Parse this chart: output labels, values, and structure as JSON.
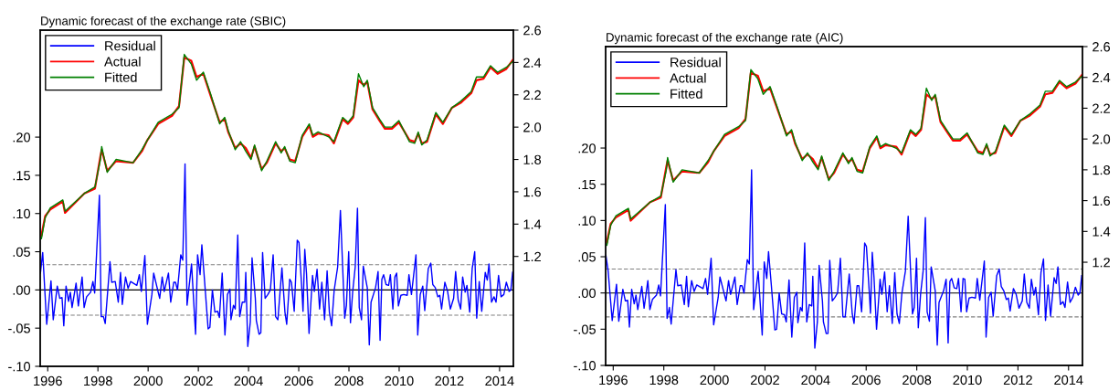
{
  "chart_data": [
    {
      "type": "line",
      "title": "Dynamic forecast of the exchange rate (SBIC)",
      "legend": "top left",
      "grid": false,
      "xlim": [
        1995.7,
        2014.55
      ],
      "xticks": [
        1996,
        1998,
        2000,
        2002,
        2004,
        2006,
        2008,
        2010,
        2012,
        2014
      ],
      "ylim": [
        -0.1,
        0.34
      ],
      "yticks": [
        {
          "value": -0.1,
          "label": "-.10"
        },
        {
          "value": -0.05,
          "label": "-.05"
        },
        {
          "value": 0,
          "label": ".00"
        },
        {
          "value": 0.05,
          "label": ".05"
        },
        {
          "value": 0.1,
          "label": ".10"
        },
        {
          "value": 0.15,
          "label": ".15"
        },
        {
          "value": 0.2,
          "label": ".20"
        }
      ],
      "y2lim": [
        0.52,
        2.6
      ],
      "y2ticks": [
        1.2,
        1.4,
        1.6,
        1.8,
        {
          "value": 2,
          "label": "2.0"
        },
        2.2,
        2.4,
        2.6
      ],
      "ref_lines": [
        {
          "axis": "y",
          "value": 0,
          "color": "#000000",
          "line_style": "solid"
        },
        {
          "axis": "y",
          "value": 0.033,
          "color": "#808080",
          "line_style": "dashed"
        },
        {
          "axis": "y",
          "value": -0.033,
          "color": "#808080",
          "line_style": "dashed"
        }
      ],
      "x": [
        1995.75,
        1995.9,
        1996.1,
        1996.4,
        1996.6,
        1996.69,
        1997.46,
        1997.88,
        1998.1,
        1998.15,
        1998.37,
        1998.72,
        1999.4,
        1999.75,
        1999.97,
        2000.4,
        2000.95,
        2001.23,
        2001.44,
        2001.72,
        2001.93,
        2002.2,
        2002.5,
        2002.85,
        2003.05,
        2003.19,
        2003.47,
        2003.68,
        2003.89,
        2004.1,
        2004.24,
        2004.52,
        2004.73,
        2005.08,
        2005.3,
        2005.44,
        2005.64,
        2005.86,
        2006.14,
        2006.42,
        2006.56,
        2006.77,
        2007.19,
        2007.4,
        2007.75,
        2007.96,
        2008.17,
        2008.38,
        2008.59,
        2008.73,
        2008.94,
        2009.22,
        2009.43,
        2009.71,
        2009.99,
        2010.41,
        2010.62,
        2010.76,
        2010.9,
        2011.11,
        2011.46,
        2011.74,
        2012.1,
        2012.45,
        2012.87,
        2013.08,
        2013.36,
        2013.64,
        2013.92,
        2014.27,
        2014.55
      ],
      "series": [
        {
          "name": "Residual",
          "color": "#0000ff",
          "axis": "y",
          "x": [
            1995.71,
            1995.8,
            1995.96,
            1996.13,
            1996.22,
            1996.38,
            1996.48,
            1996.57,
            1996.64,
            1996.73,
            1996.83,
            1996.9,
            1996.97,
            1997.13,
            1997.22,
            1997.37,
            1997.45,
            1997.55,
            1997.71,
            1997.8,
            1997.87,
            1998.06,
            1998.13,
            1998.22,
            1998.29,
            1998.48,
            1998.55,
            1998.69,
            1998.81,
            1998.9,
            1998.97,
            1999.1,
            1999.2,
            1999.3,
            1999.55,
            1999.65,
            1999.73,
            1999.87,
            1999.97,
            2000.15,
            2000.22,
            2000.46,
            2000.56,
            2000.64,
            2000.81,
            2000.9,
            2001.02,
            2001.09,
            2001.17,
            2001.3,
            2001.38,
            2001.47,
            2001.55,
            2001.73,
            2001.89,
            2001.97,
            2002.07,
            2002.14,
            2002.25,
            2002.39,
            2002.46,
            2002.56,
            2002.66,
            2002.77,
            2002.84,
            2002.95,
            2003.06,
            2003.16,
            2003.26,
            2003.3,
            2003.4,
            2003.47,
            2003.57,
            2003.65,
            2003.75,
            2003.85,
            2003.89,
            2003.97,
            2004.07,
            2004.14,
            2004.27,
            2004.31,
            2004.42,
            2004.49,
            2004.56,
            2004.66,
            2004.77,
            2004.87,
            2004.98,
            2005.08,
            2005.17,
            2005.33,
            2005.45,
            2005.52,
            2005.64,
            2005.71,
            2005.82,
            2005.94,
            2006.01,
            2006.13,
            2006.17,
            2006.24,
            2006.31,
            2006.41,
            2006.55,
            2006.62,
            2006.73,
            2006.83,
            2006.92,
            2007.03,
            2007.13,
            2007.22,
            2007.31,
            2007.41,
            2007.55,
            2007.66,
            2007.83,
            2007.9,
            2007.99,
            2008.06,
            2008.15,
            2008.25,
            2008.34,
            2008.41,
            2008.5,
            2008.57,
            2008.73,
            2008.81,
            2008.88,
            2009.06,
            2009.16,
            2009.24,
            2009.31,
            2009.38,
            2009.48,
            2009.58,
            2009.65,
            2009.75,
            2009.83,
            2009.9,
            2009.97,
            2010.07,
            2010.18,
            2010.32,
            2010.39,
            2010.49,
            2010.67,
            2010.74,
            2010.84,
            2010.94,
            2011.02,
            2011.16,
            2011.26,
            2011.34,
            2011.44,
            2011.54,
            2011.62,
            2011.69,
            2011.82,
            2011.93,
            2012.04,
            2012.17,
            2012.25,
            2012.35,
            2012.45,
            2012.53,
            2012.63,
            2012.7,
            2012.81,
            2012.91,
            2013.01,
            2013.09,
            2013.19,
            2013.29,
            2013.43,
            2013.51,
            2013.58,
            2013.68,
            2013.78,
            2013.86,
            2013.96,
            2014.06,
            2014.17,
            2014.27,
            2014.38,
            2014.45,
            2014.52
          ],
          "values": [
            0.022,
            0.049,
            -0.045,
            0.012,
            -0.039,
            0.005,
            -0.011,
            -0.01,
            -0.047,
            0.005,
            -0.015,
            -0.003,
            -0.023,
            0.009,
            -0.021,
            0.017,
            -0.023,
            -0.009,
            -0.003,
            0.011,
            -0.004,
            0.124,
            -0.035,
            -0.035,
            -0.044,
            0.037,
            0.01,
            0.011,
            -0.016,
            0.023,
            -0.019,
            0.017,
            0.002,
            0.011,
            0.006,
            0.02,
            -0.002,
            0.045,
            -0.045,
            -0.006,
            0.022,
            -0.011,
            0.017,
            -0.002,
            0.022,
            -0.016,
            0.01,
            0.01,
            0.0,
            0.046,
            0.039,
            0.165,
            -0.02,
            0.034,
            -0.058,
            0.046,
            0.02,
            0.059,
            0.011,
            -0.051,
            -0.049,
            0.0,
            -0.029,
            -0.028,
            -0.036,
            0.022,
            -0.059,
            -0.006,
            0.001,
            -0.039,
            -0.02,
            -0.025,
            0.072,
            -0.035,
            -0.016,
            -0.016,
            0.023,
            -0.074,
            -0.042,
            0.042,
            -0.011,
            -0.04,
            -0.058,
            -0.056,
            0.049,
            -0.011,
            -0.006,
            0.0,
            0.046,
            -0.035,
            -0.039,
            0.029,
            -0.029,
            -0.045,
            0.014,
            0.01,
            -0.028,
            0.065,
            0.062,
            -0.003,
            -0.028,
            0.053,
            0.021,
            -0.057,
            0.019,
            -0.002,
            0.027,
            -0.025,
            0.01,
            -0.039,
            0.025,
            -0.029,
            -0.047,
            -0.001,
            0.03,
            0.104,
            -0.037,
            -0.02,
            0.05,
            -0.043,
            -0.002,
            0.03,
            0.107,
            -0.023,
            -0.039,
            0.031,
            0.003,
            -0.072,
            -0.016,
            0.003,
            0.024,
            -0.066,
            0.014,
            0.02,
            0.007,
            0.006,
            0.02,
            -0.025,
            0.017,
            0.022,
            -0.021,
            -0.007,
            -0.006,
            -0.007,
            0.02,
            -0.006,
            0.046,
            -0.059,
            -0.006,
            0.005,
            -0.027,
            0.028,
            0.035,
            0.007,
            0.003,
            -0.009,
            -0.007,
            -0.025,
            0.01,
            -0.002,
            -0.025,
            -0.011,
            0.024,
            -0.013,
            -0.025,
            0.017,
            -0.003,
            0.006,
            -0.029,
            0.028,
            0.05,
            -0.037,
            0.011,
            -0.028,
            0.023,
            0.013,
            0.034,
            -0.016,
            -0.009,
            -0.016,
            0.019,
            -0.009,
            -0.006,
            0.01,
            -0.002,
            0.0,
            0.023
          ]
        },
        {
          "name": "Actual",
          "color": "#ff0000",
          "axis": "y2",
          "values": [
            1.33,
            1.45,
            1.49,
            1.52,
            1.54,
            1.47,
            1.59,
            1.62,
            1.82,
            1.86,
            1.73,
            1.79,
            1.78,
            1.85,
            1.92,
            2.02,
            2.07,
            2.13,
            2.43,
            2.41,
            2.31,
            2.33,
            2.19,
            2.03,
            2.05,
            1.97,
            1.87,
            1.9,
            1.87,
            1.81,
            1.88,
            1.74,
            1.78,
            1.9,
            1.85,
            1.87,
            1.8,
            1.79,
            1.94,
            2.01,
            1.94,
            1.96,
            1.95,
            1.9,
            2.05,
            2.02,
            2.06,
            2.29,
            2.26,
            2.28,
            2.11,
            2.04,
            1.99,
            1.99,
            2.03,
            1.92,
            1.91,
            1.96,
            1.9,
            1.91,
            2.08,
            2.02,
            2.12,
            2.15,
            2.21,
            2.29,
            2.3,
            2.37,
            2.33,
            2.36,
            2.42
          ]
        },
        {
          "name": "Fitted",
          "color": "#008000",
          "axis": "y2",
          "values": [
            1.31,
            1.44,
            1.5,
            1.53,
            1.55,
            1.48,
            1.59,
            1.63,
            1.8,
            1.88,
            1.72,
            1.8,
            1.78,
            1.86,
            1.92,
            2.03,
            2.08,
            2.12,
            2.45,
            2.39,
            2.29,
            2.34,
            2.2,
            2.02,
            2.06,
            1.98,
            1.86,
            1.91,
            1.85,
            1.8,
            1.89,
            1.73,
            1.79,
            1.91,
            1.84,
            1.88,
            1.79,
            1.78,
            1.95,
            2.02,
            1.95,
            1.97,
            1.94,
            1.91,
            2.06,
            2.03,
            2.07,
            2.33,
            2.25,
            2.29,
            2.12,
            2.05,
            2.0,
            2.0,
            2.04,
            1.91,
            1.9,
            1.97,
            1.89,
            1.92,
            2.09,
            2.03,
            2.12,
            2.16,
            2.22,
            2.31,
            2.31,
            2.38,
            2.34,
            2.37,
            2.41
          ]
        }
      ]
    },
    {
      "type": "line",
      "title": "Dynamic forecast of the exchange rate (AIC)",
      "legend": "top left",
      "grid": false,
      "xlim": [
        1995.7,
        2014.55
      ],
      "xticks": [
        1996,
        1998,
        2000,
        2002,
        2004,
        2006,
        2008,
        2010,
        2012,
        2014
      ],
      "ylim": [
        -0.1,
        0.34
      ],
      "yticks": [
        {
          "value": -0.1,
          "label": "-.10"
        },
        {
          "value": -0.05,
          "label": "-.05"
        },
        {
          "value": 0,
          "label": ".00"
        },
        {
          "value": 0.05,
          "label": ".05"
        },
        {
          "value": 0.1,
          "label": ".10"
        },
        {
          "value": 0.15,
          "label": ".15"
        },
        {
          "value": 0.2,
          "label": ".20"
        }
      ],
      "y2lim": [
        0.53,
        2.6
      ],
      "y2ticks": [
        1.2,
        1.4,
        1.6,
        1.8,
        {
          "value": 2,
          "label": "2.0"
        },
        2.2,
        2.4,
        2.6
      ],
      "ref_lines": [
        {
          "axis": "y",
          "value": 0,
          "color": "#000000",
          "line_style": "solid"
        },
        {
          "axis": "y",
          "value": 0.033,
          "color": "#808080",
          "line_style": "dashed"
        },
        {
          "axis": "y",
          "value": -0.033,
          "color": "#808080",
          "line_style": "dashed"
        }
      ],
      "x": [
        1995.75,
        1995.9,
        1996.1,
        1996.4,
        1996.6,
        1996.69,
        1997.46,
        1997.88,
        1998.1,
        1998.15,
        1998.37,
        1998.72,
        1999.4,
        1999.75,
        1999.97,
        2000.4,
        2000.95,
        2001.23,
        2001.44,
        2001.72,
        2001.93,
        2002.2,
        2002.5,
        2002.85,
        2003.05,
        2003.19,
        2003.47,
        2003.68,
        2003.89,
        2004.1,
        2004.24,
        2004.52,
        2004.73,
        2005.08,
        2005.3,
        2005.44,
        2005.64,
        2005.86,
        2006.14,
        2006.42,
        2006.56,
        2006.77,
        2007.19,
        2007.4,
        2007.75,
        2007.96,
        2008.17,
        2008.38,
        2008.59,
        2008.73,
        2008.94,
        2009.22,
        2009.43,
        2009.71,
        2009.99,
        2010.41,
        2010.62,
        2010.76,
        2010.9,
        2011.11,
        2011.46,
        2011.74,
        2012.1,
        2012.45,
        2012.87,
        2013.08,
        2013.36,
        2013.64,
        2013.92,
        2014.27,
        2014.55
      ],
      "series": [
        {
          "name": "Residual",
          "color": "#0000ff",
          "axis": "y",
          "x": [
            1995.71,
            1995.8,
            1995.96,
            1996.13,
            1996.22,
            1996.38,
            1996.48,
            1996.57,
            1996.64,
            1996.73,
            1996.83,
            1996.9,
            1996.97,
            1997.13,
            1997.22,
            1997.37,
            1997.45,
            1997.55,
            1997.71,
            1997.8,
            1997.87,
            1998.06,
            1998.13,
            1998.22,
            1998.29,
            1998.48,
            1998.55,
            1998.69,
            1998.81,
            1998.9,
            1998.97,
            1999.1,
            1999.2,
            1999.3,
            1999.55,
            1999.65,
            1999.73,
            1999.87,
            1999.97,
            2000.15,
            2000.22,
            2000.46,
            2000.56,
            2000.64,
            2000.81,
            2000.9,
            2001.02,
            2001.09,
            2001.17,
            2001.3,
            2001.38,
            2001.47,
            2001.55,
            2001.73,
            2001.89,
            2001.97,
            2002.07,
            2002.14,
            2002.25,
            2002.39,
            2002.46,
            2002.56,
            2002.66,
            2002.77,
            2002.84,
            2002.95,
            2003.06,
            2003.16,
            2003.26,
            2003.3,
            2003.4,
            2003.47,
            2003.57,
            2003.65,
            2003.75,
            2003.85,
            2003.89,
            2003.97,
            2004.07,
            2004.14,
            2004.27,
            2004.31,
            2004.42,
            2004.49,
            2004.56,
            2004.66,
            2004.77,
            2004.87,
            2004.98,
            2005.08,
            2005.17,
            2005.33,
            2005.45,
            2005.52,
            2005.64,
            2005.71,
            2005.82,
            2005.94,
            2006.01,
            2006.13,
            2006.17,
            2006.24,
            2006.31,
            2006.41,
            2006.55,
            2006.62,
            2006.73,
            2006.83,
            2006.92,
            2007.03,
            2007.13,
            2007.22,
            2007.31,
            2007.41,
            2007.55,
            2007.66,
            2007.83,
            2007.9,
            2007.99,
            2008.06,
            2008.15,
            2008.25,
            2008.34,
            2008.41,
            2008.5,
            2008.57,
            2008.73,
            2008.81,
            2008.88,
            2009.06,
            2009.16,
            2009.24,
            2009.31,
            2009.38,
            2009.48,
            2009.58,
            2009.65,
            2009.75,
            2009.83,
            2009.9,
            2009.97,
            2010.07,
            2010.18,
            2010.32,
            2010.39,
            2010.49,
            2010.67,
            2010.74,
            2010.84,
            2010.94,
            2011.02,
            2011.16,
            2011.26,
            2011.34,
            2011.44,
            2011.54,
            2011.62,
            2011.69,
            2011.82,
            2011.93,
            2012.04,
            2012.17,
            2012.25,
            2012.35,
            2012.45,
            2012.53,
            2012.63,
            2012.7,
            2012.81,
            2012.91,
            2013.01,
            2013.09,
            2013.19,
            2013.29,
            2013.43,
            2013.51,
            2013.58,
            2013.68,
            2013.78,
            2013.86,
            2013.96,
            2014.06,
            2014.17,
            2014.27,
            2014.38,
            2014.45,
            2014.52
          ],
          "values": [
            0.052,
            0.03,
            -0.038,
            0.012,
            -0.039,
            0.005,
            -0.011,
            -0.01,
            -0.047,
            0.005,
            -0.015,
            -0.003,
            -0.023,
            0.009,
            -0.021,
            0.017,
            -0.023,
            -0.009,
            -0.003,
            0.011,
            -0.004,
            0.122,
            -0.035,
            -0.02,
            -0.043,
            0.032,
            0.01,
            0.011,
            -0.016,
            0.023,
            -0.019,
            0.017,
            0.002,
            0.011,
            0.006,
            0.02,
            -0.002,
            0.048,
            -0.044,
            -0.006,
            0.022,
            -0.011,
            0.017,
            -0.002,
            0.022,
            -0.016,
            0.01,
            0.01,
            0.0,
            0.046,
            0.04,
            0.17,
            -0.023,
            0.03,
            -0.058,
            0.043,
            0.02,
            0.057,
            0.011,
            -0.051,
            -0.05,
            0.0,
            -0.029,
            -0.03,
            -0.04,
            0.018,
            -0.061,
            -0.006,
            0.001,
            -0.041,
            -0.02,
            -0.025,
            0.069,
            -0.04,
            -0.016,
            -0.018,
            0.023,
            -0.076,
            -0.04,
            0.038,
            -0.011,
            -0.04,
            -0.056,
            -0.056,
            0.045,
            -0.011,
            -0.006,
            0.0,
            0.048,
            -0.033,
            -0.033,
            0.026,
            -0.029,
            -0.042,
            0.01,
            0.01,
            -0.026,
            0.069,
            0.064,
            -0.003,
            -0.028,
            0.056,
            0.021,
            -0.05,
            0.019,
            -0.002,
            0.029,
            -0.026,
            0.01,
            -0.042,
            0.028,
            -0.029,
            -0.042,
            -0.001,
            0.03,
            0.106,
            -0.029,
            -0.02,
            0.048,
            -0.048,
            -0.002,
            0.03,
            0.104,
            -0.026,
            -0.039,
            0.036,
            0.003,
            -0.072,
            -0.013,
            0.003,
            0.019,
            -0.069,
            0.016,
            0.02,
            0.007,
            0.006,
            0.02,
            -0.026,
            0.02,
            0.019,
            -0.026,
            -0.007,
            -0.006,
            -0.007,
            0.02,
            -0.01,
            0.044,
            -0.061,
            -0.006,
            0.001,
            -0.032,
            0.024,
            0.033,
            0.009,
            0.003,
            -0.009,
            -0.007,
            -0.025,
            0.006,
            -0.002,
            -0.021,
            -0.011,
            0.026,
            -0.013,
            -0.021,
            0.019,
            -0.003,
            0.008,
            -0.03,
            0.028,
            0.047,
            -0.038,
            0.011,
            -0.032,
            0.021,
            0.013,
            0.036,
            -0.016,
            -0.012,
            -0.02,
            0.015,
            -0.013,
            -0.006,
            0.008,
            -0.003,
            0.0,
            0.024
          ]
        },
        {
          "name": "Actual",
          "color": "#ff0000",
          "axis": "y2",
          "values": [
            1.33,
            1.45,
            1.49,
            1.52,
            1.54,
            1.47,
            1.59,
            1.62,
            1.82,
            1.86,
            1.73,
            1.79,
            1.78,
            1.85,
            1.92,
            2.02,
            2.07,
            2.13,
            2.43,
            2.41,
            2.31,
            2.33,
            2.19,
            2.03,
            2.05,
            1.97,
            1.87,
            1.9,
            1.87,
            1.81,
            1.88,
            1.74,
            1.78,
            1.9,
            1.85,
            1.87,
            1.8,
            1.79,
            1.94,
            2.01,
            1.94,
            1.96,
            1.95,
            1.9,
            2.05,
            2.02,
            2.06,
            2.29,
            2.26,
            2.28,
            2.11,
            2.04,
            1.99,
            1.99,
            2.03,
            1.92,
            1.91,
            1.96,
            1.9,
            1.91,
            2.08,
            2.02,
            2.12,
            2.15,
            2.21,
            2.29,
            2.3,
            2.37,
            2.33,
            2.36,
            2.42
          ]
        },
        {
          "name": "Fitted",
          "color": "#008000",
          "axis": "y2",
          "values": [
            1.31,
            1.44,
            1.5,
            1.53,
            1.55,
            1.48,
            1.59,
            1.63,
            1.8,
            1.88,
            1.72,
            1.8,
            1.78,
            1.86,
            1.92,
            2.03,
            2.08,
            2.12,
            2.45,
            2.39,
            2.29,
            2.34,
            2.2,
            2.02,
            2.06,
            1.98,
            1.86,
            1.91,
            1.85,
            1.8,
            1.89,
            1.73,
            1.79,
            1.91,
            1.84,
            1.88,
            1.79,
            1.78,
            1.95,
            2.02,
            1.95,
            1.97,
            1.94,
            1.91,
            2.06,
            2.03,
            2.07,
            2.33,
            2.25,
            2.29,
            2.12,
            2.05,
            2.0,
            2.0,
            2.04,
            1.91,
            1.9,
            1.97,
            1.89,
            1.92,
            2.09,
            2.03,
            2.12,
            2.16,
            2.22,
            2.31,
            2.31,
            2.38,
            2.34,
            2.37,
            2.41
          ]
        }
      ]
    }
  ]
}
